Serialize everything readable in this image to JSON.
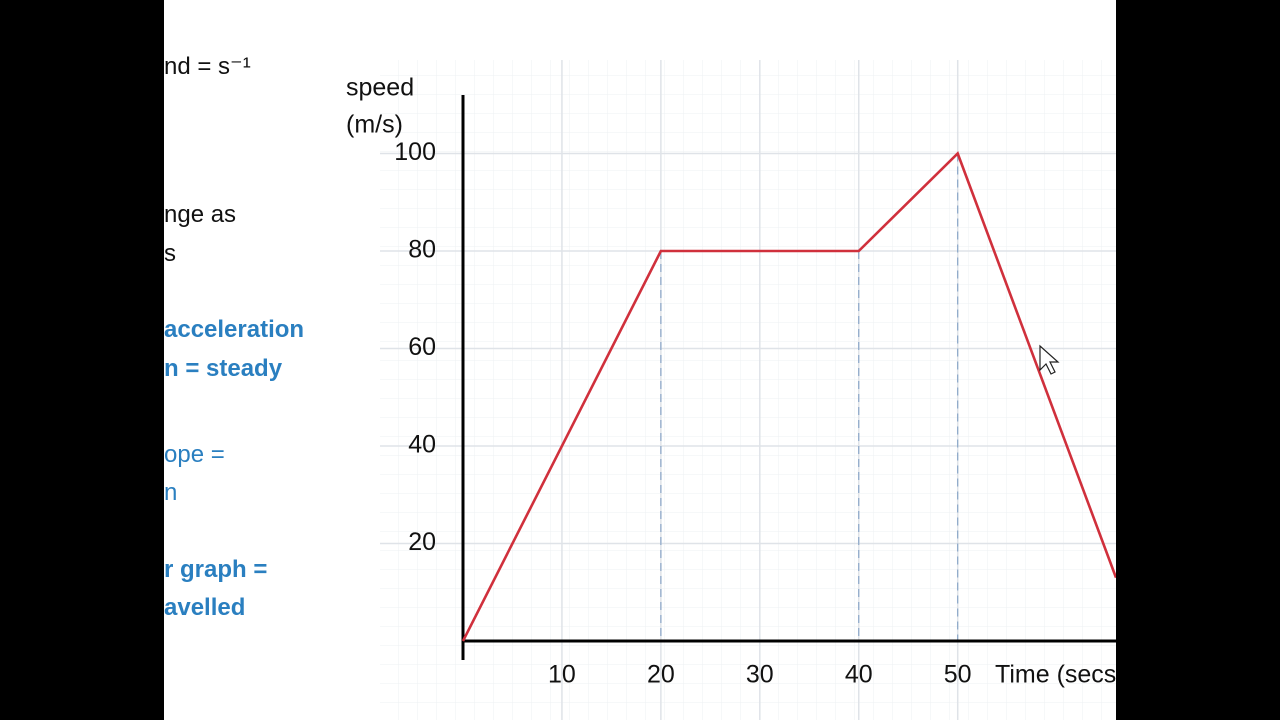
{
  "chart_data": {
    "type": "line",
    "x_label": "Time (secs)",
    "y_label": [
      "speed",
      "(m/s)"
    ],
    "x": [
      0,
      20,
      40,
      50,
      66
    ],
    "series": [
      {
        "color": "#d0303c",
        "values": [
          0,
          80,
          80,
          100,
          13
        ]
      }
    ],
    "xlim": [
      0,
      66
    ],
    "xticks": [
      10,
      20,
      30,
      40,
      50
    ],
    "ylim": [
      0,
      112
    ],
    "yticks": [
      20,
      40,
      60,
      80,
      100
    ],
    "grid": true,
    "guide_lines": true
  },
  "side_notes": [
    {
      "text": "nd = s⁻¹",
      "style": "plain"
    },
    {
      "text": "nge as",
      "style": "plain"
    },
    {
      "text": "s",
      "style": "plain"
    },
    {
      "text": "acceleration",
      "style": "bold"
    },
    {
      "text": "n = steady",
      "style": "bold"
    },
    {
      "text": "ope =",
      "style": "light"
    },
    {
      "text": "n",
      "style": "light"
    },
    {
      "text": "r graph =",
      "style": "bold"
    },
    {
      "text": "avelled",
      "style": "bold"
    }
  ]
}
